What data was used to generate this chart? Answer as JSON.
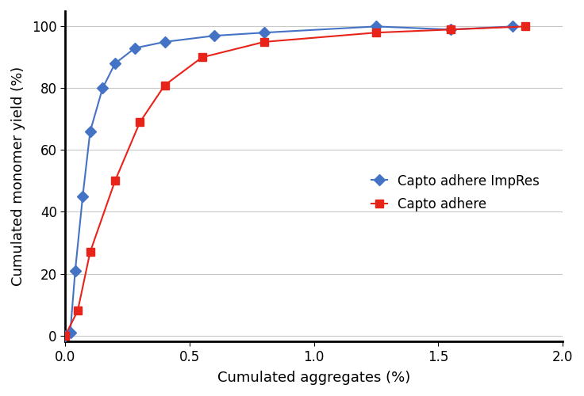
{
  "blue_x": [
    0.0,
    0.02,
    0.04,
    0.07,
    0.1,
    0.15,
    0.2,
    0.28,
    0.4,
    0.6,
    0.8,
    1.25,
    1.55,
    1.8
  ],
  "blue_y": [
    0,
    1,
    21,
    45,
    66,
    80,
    88,
    93,
    95,
    97,
    98,
    100,
    99,
    100
  ],
  "red_x": [
    0.0,
    0.05,
    0.1,
    0.2,
    0.3,
    0.4,
    0.55,
    0.8,
    1.25,
    1.55,
    1.85
  ],
  "red_y": [
    0,
    8,
    27,
    50,
    69,
    81,
    90,
    95,
    98,
    99,
    100
  ],
  "blue_label": "Capto adhere ImpRes",
  "red_label": "Capto adhere",
  "xlabel": "Cumulated aggregates (%)",
  "ylabel": "Cumulated monomer yield (%)",
  "xlim": [
    0,
    2.0
  ],
  "ylim": [
    -2,
    105
  ],
  "xticks": [
    0,
    0.5,
    1.0,
    1.5,
    2.0
  ],
  "yticks": [
    0,
    20,
    40,
    60,
    80,
    100
  ],
  "blue_color": "#4472C4",
  "red_color": "#E8231A",
  "bg_color": "#FFFFFF",
  "grid_color": "#C8C8C8"
}
